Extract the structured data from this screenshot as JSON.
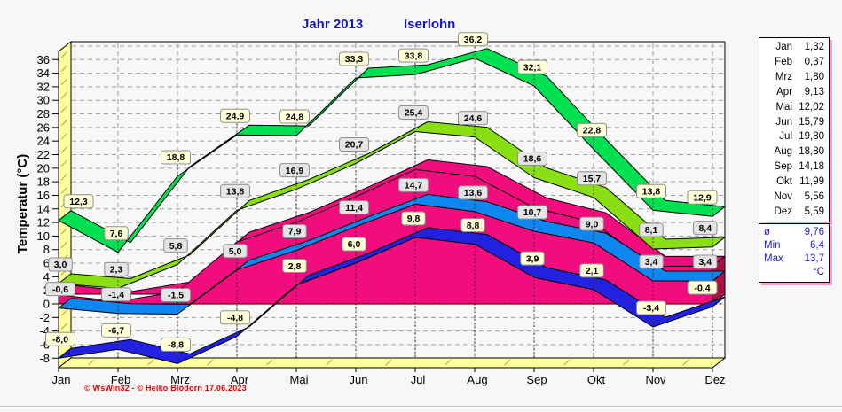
{
  "title": {
    "year_label": "Jahr  2013",
    "station": "Iserlohn",
    "color": "#1414CC"
  },
  "chart_data": {
    "type": "area",
    "title": "Jahr 2013 — Iserlohn",
    "ylabel": "Temperatur  (°C)",
    "categories": [
      "Jan",
      "Feb",
      "Mrz",
      "Apr",
      "Mai",
      "Jun",
      "Jul",
      "Aug",
      "Sep",
      "Okt",
      "Nov",
      "Dez"
    ],
    "ylim": [
      -8,
      38.6
    ],
    "ytick_min": -8,
    "ytick_max": 36,
    "ytick_step": 2,
    "grid": "dashed",
    "zero_line_color": "#CC1100",
    "frame_color": "#FFFF9E",
    "series": [
      {
        "name": "maximum",
        "kind": "ribbon",
        "color": "#00E050",
        "label_bg": "#FFFFD8",
        "values": [
          12.3,
          7.6,
          18.8,
          24.9,
          24.8,
          33.3,
          33.8,
          36.2,
          32.1,
          22.8,
          13.8,
          12.9
        ]
      },
      {
        "name": "average-maximum",
        "kind": "ribbon",
        "color": "#8ADF12",
        "label_bg": "#E4E4E4",
        "values": [
          3.0,
          2.3,
          5.8,
          13.8,
          16.9,
          20.7,
          25.4,
          24.6,
          18.6,
          15.7,
          8.1,
          8.4
        ]
      },
      {
        "name": "monthly-mean",
        "kind": "area",
        "color": "#F20D7E",
        "cap_color": "#A81343",
        "label_bg": null,
        "values": [
          1.32,
          0.37,
          1.8,
          9.13,
          12.02,
          15.79,
          19.8,
          18.8,
          14.18,
          11.99,
          5.56,
          5.59
        ]
      },
      {
        "name": "average-minimum",
        "kind": "ribbon",
        "color": "#0E86F0",
        "label_bg": "#E4E4E4",
        "values": [
          -0.6,
          -1.4,
          -1.5,
          5.0,
          7.9,
          11.4,
          14.7,
          13.6,
          10.7,
          9.0,
          3.4,
          3.4
        ]
      },
      {
        "name": "minimum",
        "kind": "ribbon",
        "color": "#2121DF",
        "label_bg": "#FFFFD8",
        "values": [
          -8.0,
          -6.7,
          -8.8,
          -4.8,
          2.8,
          6.0,
          9.8,
          8.8,
          3.9,
          2.1,
          -3.4,
          -0.4
        ]
      }
    ]
  },
  "side_table": {
    "monthly_rows": [
      [
        "Jan",
        "1,32"
      ],
      [
        "Feb",
        "0,37"
      ],
      [
        "Mrz",
        "1,80"
      ],
      [
        "Apr",
        "9,13"
      ],
      [
        "Mai",
        "12,02"
      ],
      [
        "Jun",
        "15,79"
      ],
      [
        "Jul",
        "19,80"
      ],
      [
        "Aug",
        "18,80"
      ],
      [
        "Sep",
        "14,18"
      ],
      [
        "Okt",
        "11,99"
      ],
      [
        "Nov",
        "5,56"
      ],
      [
        "Dez",
        "5,59"
      ]
    ],
    "summary_rows": [
      [
        "ø",
        "9,76"
      ],
      [
        "Min",
        "6,4"
      ],
      [
        "Max",
        "13,7"
      ],
      [
        "",
        "°C"
      ]
    ],
    "shadow_color": "#FF9CCF",
    "summary_text_color": "#2020C8"
  },
  "footer": {
    "copyright": "© WsWin32 - © Heiko Blödorn  17.06.2023",
    "color": "#E00000"
  }
}
